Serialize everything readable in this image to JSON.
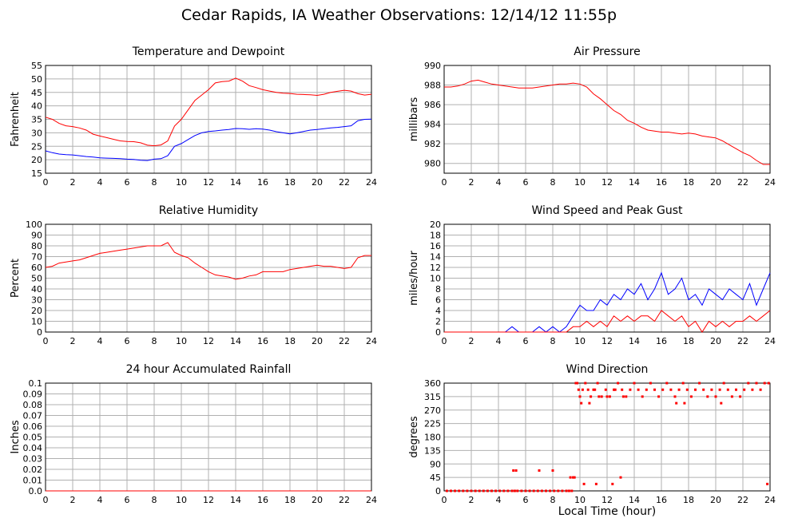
{
  "page": {
    "title": "Cedar Rapids, IA Weather Observations: 12/14/12 11:55p",
    "x_axis_title": "Local Time (hour)"
  },
  "chart_data": [
    {
      "id": "temp",
      "type": "line",
      "title": "Temperature and Dewpoint",
      "xlabel": "",
      "ylabel": "Fahrenheit",
      "xlim": [
        0,
        24
      ],
      "ylim": [
        15,
        55
      ],
      "xticks": [
        0,
        2,
        4,
        6,
        8,
        10,
        12,
        14,
        16,
        18,
        20,
        22,
        24
      ],
      "yticks": [
        15,
        20,
        25,
        30,
        35,
        40,
        45,
        50,
        55
      ],
      "grid": true,
      "series": [
        {
          "color": "#ff0000",
          "x": [
            0,
            0.5,
            1,
            1.5,
            2,
            2.5,
            3,
            3.5,
            4,
            4.5,
            5,
            5.5,
            6,
            6.5,
            7,
            7.5,
            8,
            8.5,
            9,
            9.5,
            10,
            10.5,
            11,
            11.5,
            12,
            12.5,
            13,
            13.5,
            14,
            14.5,
            15,
            15.5,
            16,
            16.5,
            17,
            17.5,
            18,
            18.5,
            19,
            19.5,
            20,
            20.5,
            21,
            21.5,
            22,
            22.5,
            23,
            23.5,
            24
          ],
          "values": [
            35.8,
            35,
            33.5,
            32.6,
            32.3,
            31.8,
            31,
            29.5,
            28.8,
            28.2,
            27.6,
            27,
            26.8,
            26.7,
            26.3,
            25.4,
            25.2,
            25.5,
            27,
            32.5,
            35,
            38.5,
            42,
            44,
            46,
            48.5,
            49,
            49.2,
            50.3,
            49.2,
            47.5,
            46.8,
            46,
            45.5,
            45,
            44.7,
            44.6,
            44.3,
            44.2,
            44.1,
            43.9,
            44.3,
            45,
            45.4,
            45.8,
            45.5,
            44.5,
            44,
            44.3
          ]
        },
        {
          "color": "#0000ff",
          "x": [
            0,
            0.5,
            1,
            1.5,
            2,
            2.5,
            3,
            3.5,
            4,
            4.5,
            5,
            5.5,
            6,
            6.5,
            7,
            7.5,
            8,
            8.5,
            9,
            9.5,
            10,
            10.5,
            11,
            11.5,
            12,
            12.5,
            13,
            13.5,
            14,
            14.5,
            15,
            15.5,
            16,
            16.5,
            17,
            17.5,
            18,
            18.5,
            19,
            19.5,
            20,
            20.5,
            21,
            21.5,
            22,
            22.5,
            23,
            23.5,
            24
          ],
          "values": [
            23.3,
            22.6,
            22.1,
            21.9,
            21.8,
            21.5,
            21.2,
            21,
            20.7,
            20.6,
            20.5,
            20.4,
            20.2,
            20.1,
            19.8,
            19.7,
            20.2,
            20.4,
            21.5,
            25,
            26,
            27.5,
            29,
            30,
            30.5,
            30.7,
            31,
            31.2,
            31.6,
            31.5,
            31.3,
            31.5,
            31.4,
            31,
            30.4,
            30,
            29.6,
            30,
            30.5,
            31,
            31.2,
            31.5,
            31.8,
            32,
            32.3,
            32.6,
            34.5,
            35,
            35.1
          ]
        }
      ]
    },
    {
      "id": "pressure",
      "type": "line",
      "title": "Air Pressure",
      "xlabel": "",
      "ylabel": "millibars",
      "xlim": [
        0,
        24
      ],
      "ylim": [
        979,
        990
      ],
      "xticks": [
        0,
        2,
        4,
        6,
        8,
        10,
        12,
        14,
        16,
        18,
        20,
        22,
        24
      ],
      "yticks": [
        980,
        982,
        984,
        986,
        988,
        990
      ],
      "grid": true,
      "series": [
        {
          "color": "#ff0000",
          "x": [
            0,
            0.5,
            1,
            1.5,
            2,
            2.5,
            3,
            3.5,
            4,
            4.5,
            5,
            5.5,
            6,
            6.5,
            7,
            7.5,
            8,
            8.5,
            9,
            9.5,
            10,
            10.5,
            11,
            11.5,
            12,
            12.5,
            13,
            13.5,
            14,
            14.5,
            15,
            15.5,
            16,
            16.5,
            17,
            17.5,
            18,
            18.5,
            19,
            19.5,
            20,
            20.5,
            21,
            21.5,
            22,
            22.5,
            23,
            23.5,
            24
          ],
          "values": [
            987.8,
            987.8,
            987.9,
            988.1,
            988.4,
            988.5,
            988.3,
            988.1,
            988,
            987.9,
            987.8,
            987.7,
            987.7,
            987.7,
            987.8,
            987.9,
            988,
            988.1,
            988.1,
            988.2,
            988.1,
            987.8,
            987.1,
            986.6,
            986,
            985.4,
            985,
            984.4,
            984.1,
            983.7,
            983.4,
            983.3,
            983.2,
            983.2,
            983.1,
            983,
            983.1,
            983,
            982.8,
            982.7,
            982.6,
            982.3,
            981.9,
            981.5,
            981.1,
            980.8,
            980.3,
            979.9,
            979.9
          ]
        }
      ]
    },
    {
      "id": "humidity",
      "type": "line",
      "title": "Relative Humidity",
      "xlabel": "",
      "ylabel": "Percent",
      "xlim": [
        0,
        24
      ],
      "ylim": [
        0,
        100
      ],
      "xticks": [
        0,
        2,
        4,
        6,
        8,
        10,
        12,
        14,
        16,
        18,
        20,
        22,
        24
      ],
      "yticks": [
        0,
        10,
        20,
        30,
        40,
        50,
        60,
        70,
        80,
        90,
        100
      ],
      "grid": true,
      "series": [
        {
          "color": "#ff0000",
          "x": [
            0,
            0.5,
            1,
            1.5,
            2,
            2.5,
            3,
            3.5,
            4,
            4.5,
            5,
            5.5,
            6,
            6.5,
            7,
            7.5,
            8,
            8.5,
            9,
            9.5,
            10,
            10.5,
            11,
            11.5,
            12,
            12.5,
            13,
            13.5,
            14,
            14.5,
            15,
            15.5,
            16,
            16.5,
            17,
            17.5,
            18,
            18.5,
            19,
            19.5,
            20,
            20.5,
            21,
            21.5,
            22,
            22.5,
            23,
            23.5,
            24
          ],
          "values": [
            60,
            61,
            64,
            65,
            66,
            67,
            69,
            71,
            73,
            74,
            75,
            76,
            77,
            78,
            79,
            80,
            80,
            80,
            83,
            74,
            71,
            69,
            64,
            60,
            56,
            53,
            52,
            51,
            49,
            50,
            52,
            53,
            56,
            56,
            56,
            56,
            58,
            59,
            60,
            61,
            62,
            61,
            61,
            60,
            59,
            60,
            69,
            71,
            71
          ]
        }
      ]
    },
    {
      "id": "wind",
      "type": "line",
      "title": "Wind Speed and Peak Gust",
      "xlabel": "",
      "ylabel": "miles/hour",
      "xlim": [
        0,
        24
      ],
      "ylim": [
        0,
        20
      ],
      "xticks": [
        0,
        2,
        4,
        6,
        8,
        10,
        12,
        14,
        16,
        18,
        20,
        22,
        24
      ],
      "yticks": [
        0,
        2,
        4,
        6,
        8,
        10,
        12,
        14,
        16,
        18,
        20
      ],
      "grid": true,
      "series": [
        {
          "color": "#0000ff",
          "x": [
            0,
            0.5,
            1,
            1.5,
            2,
            2.5,
            3,
            3.5,
            4,
            4.5,
            5,
            5.5,
            6,
            6.5,
            7,
            7.5,
            8,
            8.5,
            9,
            9.5,
            10,
            10.5,
            11,
            11.5,
            12,
            12.5,
            13,
            13.5,
            14,
            14.5,
            15,
            15.5,
            16,
            16.5,
            17,
            17.5,
            18,
            18.5,
            19,
            19.5,
            20,
            20.5,
            21,
            21.5,
            22,
            22.5,
            23,
            23.5,
            24
          ],
          "values": [
            0,
            0,
            0,
            0,
            0,
            0,
            0,
            0,
            0,
            0,
            1,
            0,
            0,
            0,
            1,
            0,
            1,
            0,
            1,
            3,
            5,
            4,
            4,
            6,
            5,
            7,
            6,
            8,
            7,
            9,
            6,
            8,
            11,
            7,
            8,
            10,
            6,
            7,
            5,
            8,
            7,
            6,
            8,
            7,
            6,
            9,
            5,
            8,
            11
          ]
        },
        {
          "color": "#ff0000",
          "x": [
            0,
            0.5,
            1,
            1.5,
            2,
            2.5,
            3,
            3.5,
            4,
            4.5,
            5,
            5.5,
            6,
            6.5,
            7,
            7.5,
            8,
            8.5,
            9,
            9.5,
            10,
            10.5,
            11,
            11.5,
            12,
            12.5,
            13,
            13.5,
            14,
            14.5,
            15,
            15.5,
            16,
            16.5,
            17,
            17.5,
            18,
            18.5,
            19,
            19.5,
            20,
            20.5,
            21,
            21.5,
            22,
            22.5,
            23,
            23.5,
            24
          ],
          "values": [
            0,
            0,
            0,
            0,
            0,
            0,
            0,
            0,
            0,
            0,
            0,
            0,
            0,
            0,
            0,
            0,
            0,
            0,
            0,
            1,
            1,
            2,
            1,
            2,
            1,
            3,
            2,
            3,
            2,
            3,
            3,
            2,
            4,
            3,
            2,
            3,
            1,
            2,
            0,
            2,
            1,
            2,
            1,
            2,
            2,
            3,
            2,
            3,
            4
          ]
        }
      ]
    },
    {
      "id": "rain",
      "type": "line",
      "title": "24 hour Accumulated Rainfall",
      "xlabel": "",
      "ylabel": "Inches",
      "xlim": [
        0,
        24
      ],
      "ylim": [
        0,
        0.1
      ],
      "xticks": [
        0,
        2,
        4,
        6,
        8,
        10,
        12,
        14,
        16,
        18,
        20,
        22,
        24
      ],
      "yticks": [
        0,
        0.01,
        0.02,
        0.03,
        0.04,
        0.05,
        0.06,
        0.07,
        0.08,
        0.09,
        0.1
      ],
      "ytick_labels": [
        "0.0",
        "0.01",
        "0.02",
        "0.03",
        "0.04",
        "0.05",
        "0.06",
        "0.07",
        "0.08",
        "0.09",
        "0.1"
      ],
      "grid": true,
      "series": [
        {
          "color": "#ff0000",
          "x": [
            0,
            24
          ],
          "values": [
            0,
            0
          ]
        }
      ]
    },
    {
      "id": "direction",
      "type": "scatter",
      "title": "Wind Direction",
      "xlabel": "Local Time (hour)",
      "ylabel": "degrees",
      "xlim": [
        0,
        24
      ],
      "ylim": [
        0,
        360
      ],
      "xticks": [
        0,
        2,
        4,
        6,
        8,
        10,
        12,
        14,
        16,
        18,
        20,
        22,
        24
      ],
      "yticks": [
        0,
        45,
        90,
        135,
        180,
        225,
        270,
        315,
        360
      ],
      "grid": true,
      "series": [
        {
          "color": "#ff0000",
          "x": [
            0.2,
            0.5,
            0.8,
            1.1,
            1.4,
            1.7,
            2,
            2.3,
            2.6,
            2.9,
            3.2,
            3.5,
            3.8,
            4.1,
            4.4,
            4.7,
            5,
            5.2,
            5.4,
            5.7,
            6,
            6.3,
            6.6,
            6.9,
            7.2,
            7.5,
            7.8,
            8.1,
            8.4,
            8.7,
            9,
            9.2,
            9.4,
            5.1,
            5.3,
            7,
            8,
            9.3,
            9.5,
            9.6,
            9.7,
            9.8,
            9.9,
            10,
            10.2,
            10.4,
            10.6,
            10.8,
            11,
            11.3,
            11.6,
            11.9,
            12.2,
            12.5,
            12.8,
            13.1,
            13.4,
            13.7,
            14,
            14.3,
            14.6,
            14.9,
            15.2,
            15.5,
            15.8,
            16.1,
            16.4,
            16.7,
            17,
            17.3,
            17.6,
            17.9,
            18.2,
            18.5,
            18.8,
            19.1,
            19.4,
            19.7,
            20,
            20.3,
            20.6,
            20.9,
            21.2,
            21.5,
            21.8,
            22.1,
            22.4,
            22.7,
            23,
            23.3,
            23.6,
            23.9,
            10.1,
            10.7,
            11.1,
            11.4,
            12,
            12.6,
            13.2,
            17.1,
            17.7,
            20.4,
            10.3,
            11.2,
            12.4,
            13,
            23.8
          ],
          "values": [
            0,
            0,
            0,
            0,
            0,
            0,
            0,
            0,
            0,
            0,
            0,
            0,
            0,
            0,
            0,
            0,
            0,
            0,
            0,
            0,
            0,
            0,
            0,
            0,
            0,
            0,
            0,
            0,
            0,
            0,
            0,
            0,
            0,
            68,
            68,
            68,
            68,
            45,
            45,
            45,
            360,
            360,
            338,
            315,
            338,
            360,
            338,
            315,
            338,
            360,
            315,
            338,
            315,
            338,
            360,
            338,
            315,
            338,
            360,
            338,
            315,
            338,
            360,
            338,
            315,
            338,
            360,
            338,
            315,
            338,
            360,
            338,
            315,
            338,
            360,
            338,
            315,
            338,
            315,
            338,
            360,
            338,
            315,
            338,
            315,
            338,
            360,
            338,
            360,
            338,
            360,
            360,
            293,
            293,
            338,
            315,
            315,
            338,
            315,
            293,
            293,
            293,
            23,
            23,
            23,
            45,
            23
          ]
        }
      ]
    }
  ]
}
